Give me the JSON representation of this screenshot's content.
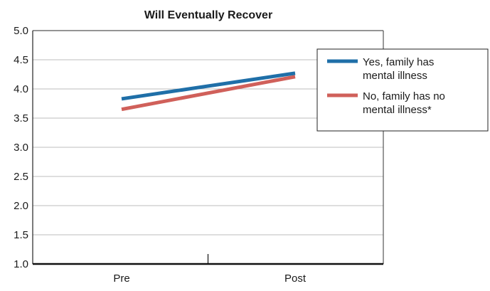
{
  "chart_data": {
    "type": "line",
    "title": "Will Eventually Recover",
    "xlabel": "",
    "ylabel": "",
    "categories": [
      "Pre",
      "Post"
    ],
    "ylim": [
      1.0,
      5.0
    ],
    "yticks": [
      "1.0",
      "1.5",
      "2.0",
      "2.5",
      "3.0",
      "3.5",
      "4.0",
      "4.5",
      "5.0"
    ],
    "grid": true,
    "legend_position": "top-right",
    "series": [
      {
        "name_lines": [
          "Yes, family has",
          "mental illness"
        ],
        "values": [
          3.83,
          4.27
        ],
        "color": "#1f6fa8"
      },
      {
        "name_lines": [
          "No, family has no",
          "mental illness*"
        ],
        "values": [
          3.65,
          4.21
        ],
        "color": "#d0605a"
      }
    ]
  }
}
